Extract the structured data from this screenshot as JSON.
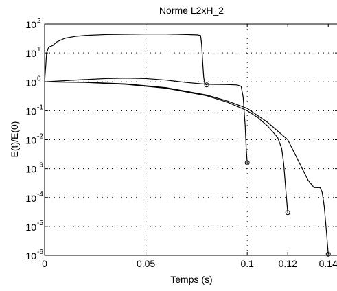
{
  "chart_data": {
    "type": "line",
    "title": "Norme L2xH_2",
    "xlabel": "Temps (s)",
    "ylabel": "E(t)/E(0)",
    "yscale": "log",
    "xlim": [
      0,
      0.145
    ],
    "ylim": [
      1e-06,
      100
    ],
    "x_ticks": [
      {
        "value": 0,
        "label": "0"
      },
      {
        "value": 0.05,
        "label": "0.05"
      },
      {
        "value": 0.1,
        "label": "0.1"
      },
      {
        "value": 0.12,
        "label": "0.12"
      },
      {
        "value": 0.14,
        "label": "0.14"
      }
    ],
    "y_ticks": [
      {
        "value": 100,
        "base": "10",
        "exp": "2"
      },
      {
        "value": 10,
        "base": "10",
        "exp": "1"
      },
      {
        "value": 1,
        "base": "10",
        "exp": "0"
      },
      {
        "value": 0.1,
        "base": "10",
        "exp": "-1"
      },
      {
        "value": 0.01,
        "base": "10",
        "exp": "-2"
      },
      {
        "value": 0.001,
        "base": "10",
        "exp": "-3"
      },
      {
        "value": 0.0001,
        "base": "10",
        "exp": "-4"
      },
      {
        "value": 1e-05,
        "base": "10",
        "exp": "-5"
      },
      {
        "value": 1e-06,
        "base": "10",
        "exp": "-6"
      }
    ],
    "grid": {
      "x": [
        0.05,
        0.1
      ],
      "y_dotted": true
    },
    "series": [
      {
        "points": [
          [
            0,
            1.0
          ],
          [
            0.0005,
            3
          ],
          [
            0.001,
            10
          ],
          [
            0.002,
            16
          ],
          [
            0.004,
            18
          ],
          [
            0.006,
            24
          ],
          [
            0.01,
            32
          ],
          [
            0.015,
            37
          ],
          [
            0.02,
            40
          ],
          [
            0.03,
            43
          ],
          [
            0.04,
            44
          ],
          [
            0.05,
            45
          ],
          [
            0.06,
            45
          ],
          [
            0.07,
            43
          ],
          [
            0.075,
            42
          ],
          [
            0.077,
            40
          ],
          [
            0.0775,
            20
          ],
          [
            0.078,
            5
          ],
          [
            0.0785,
            1.5
          ],
          [
            0.079,
            0.85
          ],
          [
            0.08,
            0.78
          ]
        ],
        "end_marker": true
      },
      {
        "points": [
          [
            0,
            1.0
          ],
          [
            0.01,
            1.1
          ],
          [
            0.02,
            1.2
          ],
          [
            0.03,
            1.3
          ],
          [
            0.04,
            1.35
          ],
          [
            0.05,
            1.3
          ],
          [
            0.06,
            1.15
          ],
          [
            0.07,
            0.95
          ],
          [
            0.08,
            0.82
          ],
          [
            0.09,
            0.8
          ],
          [
            0.095,
            0.78
          ],
          [
            0.097,
            0.7
          ],
          [
            0.098,
            0.3
          ],
          [
            0.099,
            0.03
          ],
          [
            0.0995,
            0.005
          ],
          [
            0.1,
            0.0016
          ]
        ],
        "end_marker": true
      },
      {
        "points": [
          [
            0,
            1.0
          ],
          [
            0.02,
            0.95
          ],
          [
            0.04,
            0.82
          ],
          [
            0.06,
            0.6
          ],
          [
            0.08,
            0.33
          ],
          [
            0.09,
            0.2
          ],
          [
            0.1,
            0.1
          ],
          [
            0.105,
            0.06
          ],
          [
            0.11,
            0.03
          ],
          [
            0.115,
            0.012
          ],
          [
            0.117,
            0.005
          ],
          [
            0.118,
            0.0015
          ],
          [
            0.119,
            0.0002
          ],
          [
            0.12,
            3e-05
          ]
        ],
        "end_marker": true
      },
      {
        "points": [
          [
            0,
            1.0
          ],
          [
            0.02,
            0.97
          ],
          [
            0.04,
            0.85
          ],
          [
            0.06,
            0.63
          ],
          [
            0.08,
            0.35
          ],
          [
            0.09,
            0.22
          ],
          [
            0.1,
            0.12
          ],
          [
            0.11,
            0.04
          ],
          [
            0.12,
            0.01
          ],
          [
            0.125,
            0.002
          ],
          [
            0.13,
            0.0004
          ],
          [
            0.133,
            0.00022
          ],
          [
            0.136,
            0.00022
          ],
          [
            0.137,
            0.00015
          ],
          [
            0.138,
            5e-05
          ],
          [
            0.139,
            8e-06
          ],
          [
            0.14,
            1.1e-06
          ]
        ],
        "end_marker": true
      }
    ]
  }
}
